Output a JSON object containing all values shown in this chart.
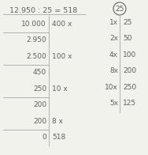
{
  "title": "12.950 : 25 = 518",
  "left_col": {
    "rows": [
      {
        "left": "10.000",
        "right": "400 x",
        "line_below": true
      },
      {
        "left": "2.950",
        "right": "",
        "line_below": false
      },
      {
        "left": "2.500",
        "right": "100 x",
        "line_below": true
      },
      {
        "left": "450",
        "right": "",
        "line_below": false
      },
      {
        "left": "250",
        "right": "10 x",
        "line_below": true
      },
      {
        "left": "200",
        "right": "",
        "line_below": false
      },
      {
        "left": "200",
        "right": "8 x",
        "line_below": true
      },
      {
        "left": "0",
        "right": "518",
        "line_below": false
      }
    ]
  },
  "right_table": {
    "circle_label": "25",
    "rows": [
      {
        "left": "1x",
        "right": "25"
      },
      {
        "left": "2x",
        "right": "50"
      },
      {
        "left": "4x",
        "right": "100"
      },
      {
        "left": "8x",
        "right": "200"
      },
      {
        "left": "10x",
        "right": "250"
      },
      {
        "left": "5x",
        "right": "125"
      }
    ]
  },
  "bg_color": "#f2f2ed",
  "text_color": "#606060",
  "line_color": "#b0b0b0",
  "font_size": 6.5,
  "title_font_size": 6.8
}
